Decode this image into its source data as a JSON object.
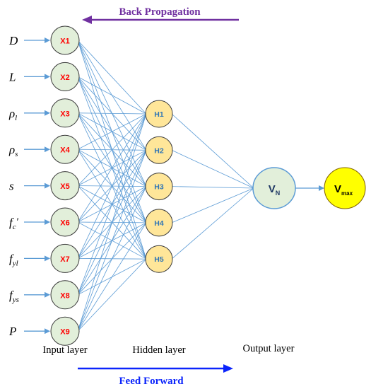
{
  "colors": {
    "back_arrow": "#7030a0",
    "feed_arrow": "#0b24fb",
    "connection": "#5b9bd5",
    "input_fill": "#e2efda",
    "input_stroke": "#3a3a3a",
    "input_text": "#ff0000",
    "hidden_fill": "#ffe699",
    "hidden_stroke": "#3a3a3a",
    "hidden_text": "#2e75b6",
    "output_fill": "#e2efda",
    "output_stroke": "#5b9bd5",
    "output_text": "#1f3864",
    "final_fill": "#ffff00",
    "final_text": "#000000"
  },
  "back_propagation": {
    "label": "Back Propagation"
  },
  "feed_forward": {
    "label": "Feed Forward"
  },
  "layer_labels": {
    "input": "Input layer",
    "hidden": "Hidden layer",
    "output": "Output layer"
  },
  "inputs": [
    {
      "symbol": "D",
      "sub": "",
      "prime": "",
      "node": "X1"
    },
    {
      "symbol": "L",
      "sub": "",
      "prime": "",
      "node": "X2"
    },
    {
      "symbol": "ρ",
      "sub": "l",
      "prime": "",
      "node": "X3"
    },
    {
      "symbol": "ρ",
      "sub": "s",
      "prime": "",
      "node": "X4"
    },
    {
      "symbol": "s",
      "sub": "",
      "prime": "",
      "node": "X5"
    },
    {
      "symbol": "f",
      "sub": "c",
      "prime": "′",
      "node": "X6"
    },
    {
      "symbol": "f",
      "sub": "yl",
      "prime": "",
      "node": "X7"
    },
    {
      "symbol": "f",
      "sub": "ys",
      "prime": "",
      "node": "X8"
    },
    {
      "symbol": "P",
      "sub": "",
      "prime": "",
      "node": "X9"
    }
  ],
  "hidden": [
    "H1",
    "H2",
    "H3",
    "H4",
    "H5"
  ],
  "output": {
    "main": "V",
    "sub": "N"
  },
  "final": {
    "main": "V",
    "sub": "max"
  }
}
